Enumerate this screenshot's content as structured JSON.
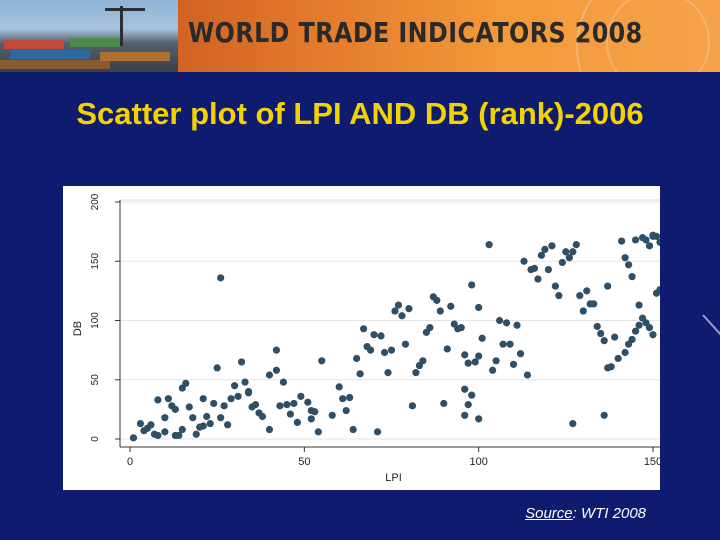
{
  "banner": {
    "title": "WORLD TRADE INDICATORS 2008"
  },
  "slide_title": "Scatter plot of LPI AND DB (rank)-2006",
  "source": {
    "label": "Source",
    "text": ": WTI 2008"
  },
  "colors": {
    "background": "#0e1b6e",
    "title": "#f2d300",
    "points": "#2f4f66",
    "banner": "#e0752a"
  },
  "chart_data": {
    "type": "scatter",
    "xlabel": "LPI",
    "ylabel": "DB",
    "xlim": [
      0,
      150
    ],
    "ylim": [
      0,
      200
    ],
    "xticks": [
      0,
      50,
      100,
      150
    ],
    "yticks": [
      0,
      50,
      100,
      150,
      200
    ],
    "grid": "horizontal",
    "points": [
      [
        1,
        1
      ],
      [
        3,
        13
      ],
      [
        4,
        7
      ],
      [
        5,
        9
      ],
      [
        6,
        12
      ],
      [
        7,
        4
      ],
      [
        8,
        3
      ],
      [
        8,
        33
      ],
      [
        10,
        18
      ],
      [
        10,
        6
      ],
      [
        11,
        34
      ],
      [
        12,
        28
      ],
      [
        13,
        25
      ],
      [
        13,
        3
      ],
      [
        14,
        3
      ],
      [
        15,
        8
      ],
      [
        15,
        43
      ],
      [
        16,
        47
      ],
      [
        17,
        27
      ],
      [
        18,
        18
      ],
      [
        19,
        4
      ],
      [
        20,
        10
      ],
      [
        21,
        34
      ],
      [
        21,
        11
      ],
      [
        22,
        19
      ],
      [
        23,
        13
      ],
      [
        24,
        30
      ],
      [
        25,
        60
      ],
      [
        26,
        18
      ],
      [
        26,
        136
      ],
      [
        27,
        28
      ],
      [
        28,
        12
      ],
      [
        29,
        34
      ],
      [
        30,
        45
      ],
      [
        31,
        36
      ],
      [
        32,
        65
      ],
      [
        33,
        48
      ],
      [
        34,
        39
      ],
      [
        34,
        40
      ],
      [
        35,
        27
      ],
      [
        36,
        29
      ],
      [
        37,
        22
      ],
      [
        38,
        19
      ],
      [
        40,
        54
      ],
      [
        40,
        8
      ],
      [
        42,
        75
      ],
      [
        42,
        58
      ],
      [
        43,
        28
      ],
      [
        44,
        48
      ],
      [
        45,
        29
      ],
      [
        46,
        21
      ],
      [
        47,
        30
      ],
      [
        48,
        14
      ],
      [
        49,
        36
      ],
      [
        51,
        31
      ],
      [
        52,
        24
      ],
      [
        52,
        17
      ],
      [
        53,
        23
      ],
      [
        54,
        6
      ],
      [
        55,
        66
      ],
      [
        58,
        20
      ],
      [
        60,
        44
      ],
      [
        61,
        34
      ],
      [
        62,
        24
      ],
      [
        63,
        35
      ],
      [
        64,
        8
      ],
      [
        65,
        68
      ],
      [
        66,
        55
      ],
      [
        67,
        93
      ],
      [
        68,
        78
      ],
      [
        69,
        75
      ],
      [
        70,
        88
      ],
      [
        71,
        6
      ],
      [
        72,
        87
      ],
      [
        73,
        73
      ],
      [
        74,
        56
      ],
      [
        75,
        75
      ],
      [
        76,
        108
      ],
      [
        77,
        113
      ],
      [
        78,
        104
      ],
      [
        79,
        80
      ],
      [
        80,
        110
      ],
      [
        81,
        28
      ],
      [
        82,
        56
      ],
      [
        83,
        62
      ],
      [
        84,
        66
      ],
      [
        85,
        90
      ],
      [
        86,
        94
      ],
      [
        87,
        120
      ],
      [
        88,
        117
      ],
      [
        89,
        108
      ],
      [
        90,
        30
      ],
      [
        91,
        76
      ],
      [
        92,
        112
      ],
      [
        93,
        97
      ],
      [
        94,
        93
      ],
      [
        95,
        94
      ],
      [
        96,
        71
      ],
      [
        97,
        64
      ],
      [
        98,
        130
      ],
      [
        100,
        111
      ],
      [
        101,
        85
      ],
      [
        103,
        164
      ],
      [
        104,
        58
      ],
      [
        105,
        66
      ],
      [
        106,
        100
      ],
      [
        107,
        80
      ],
      [
        108,
        98
      ],
      [
        109,
        80
      ],
      [
        110,
        63
      ],
      [
        111,
        96
      ],
      [
        112,
        72
      ],
      [
        113,
        150
      ],
      [
        114,
        54
      ],
      [
        115,
        143
      ],
      [
        116,
        144
      ],
      [
        117,
        135
      ],
      [
        118,
        155
      ],
      [
        119,
        160
      ],
      [
        120,
        143
      ],
      [
        121,
        163
      ],
      [
        122,
        129
      ],
      [
        123,
        121
      ],
      [
        124,
        149
      ],
      [
        125,
        158
      ],
      [
        126,
        153
      ],
      [
        127,
        158
      ],
      [
        128,
        164
      ],
      [
        129,
        121
      ],
      [
        130,
        108
      ],
      [
        131,
        125
      ],
      [
        132,
        114
      ],
      [
        133,
        114
      ],
      [
        134,
        95
      ],
      [
        135,
        89
      ],
      [
        136,
        83
      ],
      [
        137,
        129
      ],
      [
        138,
        61
      ],
      [
        139,
        86
      ],
      [
        140,
        68
      ],
      [
        141,
        167
      ],
      [
        142,
        153
      ],
      [
        143,
        147
      ],
      [
        144,
        137
      ],
      [
        145,
        168
      ],
      [
        146,
        113
      ],
      [
        147,
        170
      ],
      [
        148,
        168
      ],
      [
        149,
        163
      ],
      [
        150,
        172
      ],
      [
        96,
        42
      ],
      [
        97,
        29
      ],
      [
        98,
        37
      ],
      [
        99,
        65
      ],
      [
        100,
        70
      ],
      [
        137,
        60
      ],
      [
        142,
        73
      ],
      [
        143,
        80
      ],
      [
        144,
        84
      ],
      [
        145,
        91
      ],
      [
        146,
        96
      ],
      [
        147,
        102
      ],
      [
        148,
        98
      ],
      [
        149,
        94
      ],
      [
        150,
        88
      ],
      [
        151,
        123
      ],
      [
        152,
        126
      ],
      [
        153,
        139
      ],
      [
        152,
        166
      ],
      [
        151,
        171
      ],
      [
        150,
        171
      ],
      [
        136,
        20
      ],
      [
        127,
        13
      ],
      [
        96,
        20
      ],
      [
        100,
        17
      ]
    ]
  }
}
